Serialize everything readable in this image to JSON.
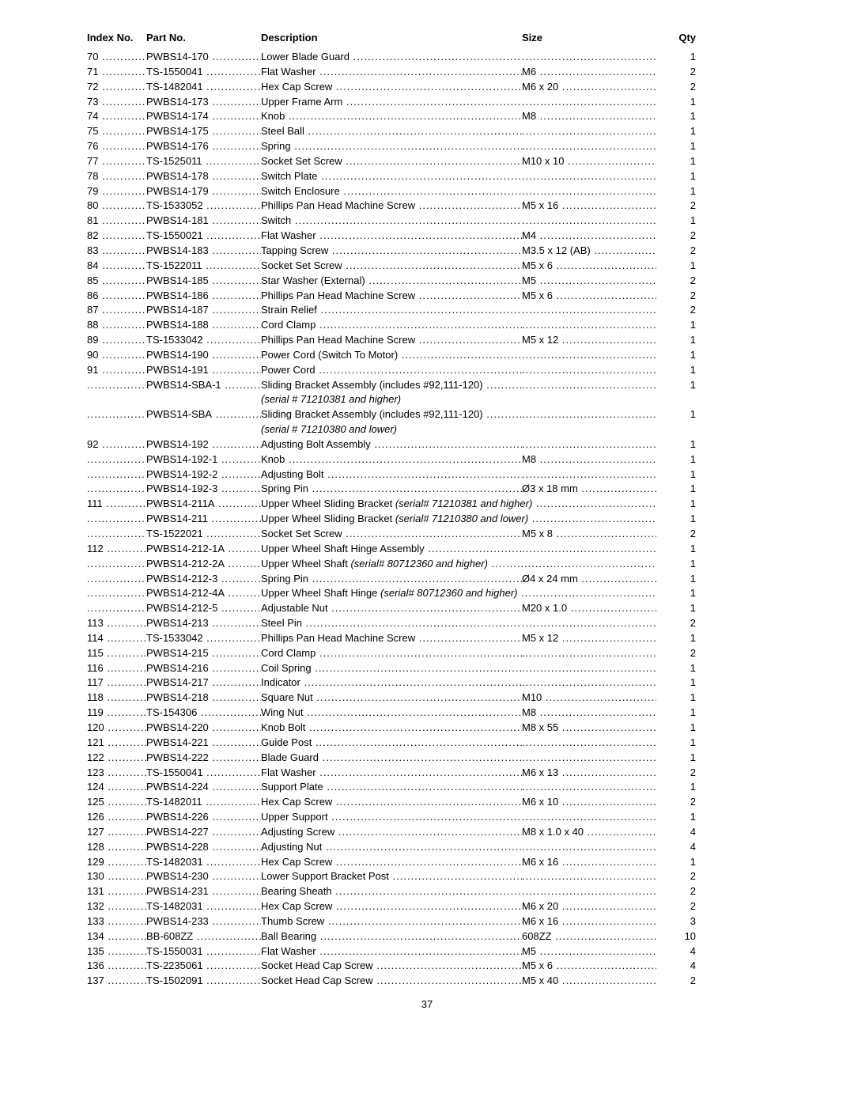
{
  "headers": {
    "index": "Index No.",
    "part": "Part No.",
    "desc": "Description",
    "size": "Size",
    "qty": "Qty"
  },
  "page_number": "37",
  "rows": [
    {
      "index": "70",
      "part": "PWBS14-170",
      "desc": "Lower Blade Guard",
      "size": "",
      "qty": "1"
    },
    {
      "index": "71",
      "part": "TS-1550041",
      "desc": "Flat Washer",
      "size": "M6",
      "qty": "2"
    },
    {
      "index": "72",
      "part": "TS-1482041",
      "desc": "Hex Cap Screw",
      "size": "M6 x 20",
      "qty": "2"
    },
    {
      "index": "73",
      "part": "PWBS14-173",
      "desc": "Upper Frame Arm",
      "size": "",
      "qty": "1"
    },
    {
      "index": "74",
      "part": "PWBS14-174",
      "desc": "Knob",
      "size": "M8",
      "qty": "1"
    },
    {
      "index": "75",
      "part": "PWBS14-175",
      "desc": "Steel Ball",
      "size": "",
      "qty": "1"
    },
    {
      "index": "76",
      "part": "PWBS14-176",
      "desc": "Spring",
      "size": "",
      "qty": "1"
    },
    {
      "index": "77",
      "part": "TS-1525011",
      "desc": "Socket Set Screw",
      "size": "M10 x 10",
      "qty": "1"
    },
    {
      "index": "78",
      "part": "PWBS14-178",
      "desc": "Switch Plate",
      "size": "",
      "qty": "1"
    },
    {
      "index": "79",
      "part": "PWBS14-179",
      "desc": "Switch Enclosure",
      "size": "",
      "qty": "1"
    },
    {
      "index": "80",
      "part": "TS-1533052",
      "desc": "Phillips Pan Head Machine Screw",
      "size": "M5 x 16",
      "qty": "2"
    },
    {
      "index": "81",
      "part": "PWBS14-181",
      "desc": "Switch",
      "size": "",
      "qty": "1"
    },
    {
      "index": "82",
      "part": "TS-1550021",
      "desc": "Flat Washer",
      "size": "M4",
      "qty": "2"
    },
    {
      "index": "83",
      "part": "PWBS14-183",
      "desc": "Tapping Screw",
      "size": "M3.5 x 12 (AB)",
      "qty": "2"
    },
    {
      "index": "84",
      "part": "TS-1522011",
      "desc": "Socket Set Screw",
      "size": "M5 x 6",
      "qty": "1"
    },
    {
      "index": "85",
      "part": "PWBS14-185",
      "desc": "Star Washer (External)",
      "size": "M5",
      "qty": "2"
    },
    {
      "index": "86",
      "part": "PWBS14-186",
      "desc": "Phillips Pan Head Machine Screw",
      "size": "M5 x 6",
      "qty": "2"
    },
    {
      "index": "87",
      "part": "PWBS14-187",
      "desc": "Strain Relief",
      "size": "",
      "qty": "2"
    },
    {
      "index": "88",
      "part": "PWBS14-188",
      "desc": "Cord Clamp",
      "size": "",
      "qty": "1"
    },
    {
      "index": "89",
      "part": "TS-1533042",
      "desc": "Phillips Pan Head Machine Screw",
      "size": "M5 x 12",
      "qty": "1"
    },
    {
      "index": "90",
      "part": "PWBS14-190",
      "desc": "Power Cord (Switch To Motor)",
      "size": "",
      "qty": "1"
    },
    {
      "index": "91",
      "part": "PWBS14-191",
      "desc": "Power Cord",
      "size": "",
      "qty": "1"
    },
    {
      "index": "",
      "part": "PWBS14-SBA-1",
      "desc": "Sliding Bracket Assembly (includes #92,111-120)",
      "size": "",
      "qty": "1",
      "note": "(serial # 71210381 and higher)"
    },
    {
      "index": "",
      "part": "PWBS14-SBA",
      "desc": "Sliding Bracket Assembly (includes #92,111-120)",
      "size": "",
      "qty": "1",
      "note": "(serial # 71210380 and lower)"
    },
    {
      "index": "92",
      "part": "PWBS14-192",
      "desc": "Adjusting Bolt Assembly",
      "size": "",
      "qty": "1"
    },
    {
      "index": "",
      "part": "PWBS14-192-1",
      "desc": "Knob",
      "size": "M8",
      "qty": "1"
    },
    {
      "index": "",
      "part": "PWBS14-192-2",
      "desc": "Adjusting Bolt",
      "size": "",
      "qty": "1"
    },
    {
      "index": "",
      "part": "PWBS14-192-3",
      "desc": "Spring Pin",
      "size": "Ø3 x 18 mm",
      "qty": "1"
    },
    {
      "index": "111",
      "part": "PWBS14-211A",
      "desc": "Upper Wheel Sliding Bracket",
      "desc_italic": "(serial# 71210381 and higher)",
      "size": "",
      "qty": "1"
    },
    {
      "index": "",
      "part": "PWBS14-211",
      "desc": "Upper Wheel Sliding Bracket",
      "desc_italic": "(serial# 71210380 and lower)",
      "size": "",
      "qty": "1"
    },
    {
      "index": "",
      "part": "TS-1522021",
      "desc": "Socket Set Screw",
      "size": "M5 x 8",
      "qty": "2"
    },
    {
      "index": "112",
      "part": "PWBS14-212-1A",
      "desc": "Upper Wheel Shaft Hinge Assembly",
      "size": "",
      "qty": "1"
    },
    {
      "index": "",
      "part": "PWBS14-212-2A",
      "desc": "Upper Wheel Shaft",
      "desc_italic": "(serial# 80712360 and higher)",
      "size": "",
      "qty": "1"
    },
    {
      "index": "",
      "part": "PWBS14-212-3",
      "desc": "Spring Pin",
      "size": "Ø4 x 24 mm",
      "qty": "1"
    },
    {
      "index": "",
      "part": "PWBS14-212-4A",
      "desc": "Upper Wheel Shaft Hinge",
      "desc_italic": "(serial# 80712360 and higher)",
      "size": "",
      "qty": "1"
    },
    {
      "index": "",
      "part": "PWBS14-212-5",
      "desc": "Adjustable Nut",
      "size": "M20 x 1.0",
      "qty": "1"
    },
    {
      "index": "113",
      "part": "PWBS14-213",
      "desc": "Steel Pin",
      "size": "",
      "qty": "2"
    },
    {
      "index": "114",
      "part": "TS-1533042",
      "desc": "Phillips Pan Head Machine Screw",
      "size": "M5 x 12",
      "qty": "1"
    },
    {
      "index": "115",
      "part": "PWBS14-215",
      "desc": "Cord Clamp",
      "size": "",
      "qty": "2"
    },
    {
      "index": "116",
      "part": "PWBS14-216",
      "desc": "Coil Spring",
      "size": "",
      "qty": "1"
    },
    {
      "index": "117",
      "part": "PWBS14-217",
      "desc": "Indicator",
      "size": "",
      "qty": "1"
    },
    {
      "index": "118",
      "part": "PWBS14-218",
      "desc": "Square Nut",
      "size": "M10",
      "qty": "1"
    },
    {
      "index": "119",
      "part": "TS-154306",
      "desc": "Wing Nut",
      "size": "M8",
      "qty": "1"
    },
    {
      "index": "120",
      "part": "PWBS14-220",
      "desc": "Knob Bolt",
      "size": "M8 x 55",
      "qty": "1"
    },
    {
      "index": "121",
      "part": "PWBS14-221",
      "desc": "Guide Post",
      "size": "",
      "qty": "1"
    },
    {
      "index": "122",
      "part": "PWBS14-222",
      "desc": "Blade Guard",
      "size": "",
      "qty": "1"
    },
    {
      "index": "123",
      "part": "TS-1550041",
      "desc": "Flat Washer",
      "size": "M6 x 13",
      "qty": "2"
    },
    {
      "index": "124",
      "part": "PWBS14-224",
      "desc": "Support Plate",
      "size": "",
      "qty": "1"
    },
    {
      "index": "125",
      "part": "TS-1482011",
      "desc": "Hex Cap Screw",
      "size": "M6 x 10",
      "qty": "2"
    },
    {
      "index": "126",
      "part": "PWBS14-226",
      "desc": "Upper Support",
      "size": "",
      "qty": "1"
    },
    {
      "index": "127",
      "part": "PWBS14-227",
      "desc": "Adjusting Screw",
      "size": "M8 x 1.0 x 40",
      "qty": "4"
    },
    {
      "index": "128",
      "part": "PWBS14-228",
      "desc": "Adjusting Nut",
      "size": "",
      "qty": "4"
    },
    {
      "index": "129",
      "part": "TS-1482031",
      "desc": "Hex Cap Screw",
      "size": "M6 x 16",
      "qty": "1"
    },
    {
      "index": "130",
      "part": "PWBS14-230",
      "desc": "Lower Support Bracket Post",
      "size": "",
      "qty": "2"
    },
    {
      "index": "131",
      "part": "PWBS14-231",
      "desc": "Bearing Sheath",
      "size": "",
      "qty": "2"
    },
    {
      "index": "132",
      "part": "TS-1482031",
      "desc": "Hex Cap Screw",
      "size": "M6 x 20",
      "qty": "2"
    },
    {
      "index": "133",
      "part": "PWBS14-233",
      "desc": "Thumb Screw",
      "size": "M6 x 16",
      "qty": "3"
    },
    {
      "index": "134",
      "part": "BB-608ZZ",
      "desc": "Ball Bearing",
      "size": "608ZZ",
      "qty": "10"
    },
    {
      "index": "135",
      "part": "TS-1550031",
      "desc": "Flat Washer",
      "size": "M5",
      "qty": "4"
    },
    {
      "index": "136",
      "part": "TS-2235061",
      "desc": "Socket Head Cap Screw",
      "size": "M5 x 6",
      "qty": "4"
    },
    {
      "index": "137",
      "part": "TS-1502091",
      "desc": "Socket Head Cap Screw",
      "size": "M5 x 40",
      "qty": "2"
    }
  ]
}
